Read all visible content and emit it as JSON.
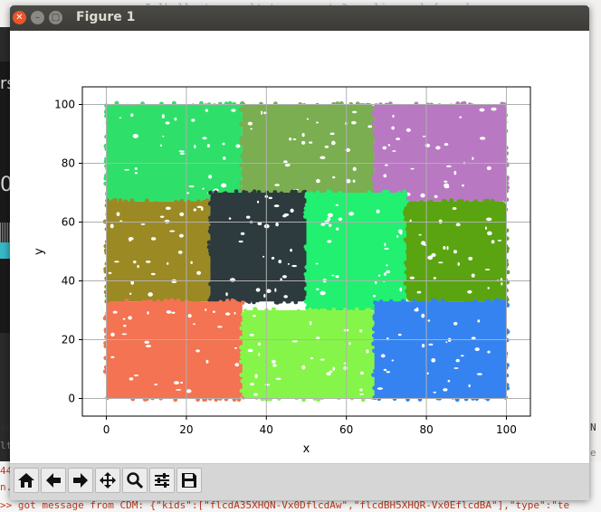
{
  "window": {
    "title": "Figure 1"
  },
  "background": {
    "top_text": "Ӏ   lbulluət  ‚ssssltut  u‚pccgat‚Ә‚xeulicsx  elxfcewel sesxse",
    "left_fragments": [
      "rs",
      "0"
    ],
    "right_fragments": [
      "N",
      "e"
    ],
    "bottom_left_fragments": [
      "sp",
      "lt",
      "44",
      "n."
    ],
    "terminal_prompt": ">>",
    "terminal_line": "got message from CDM: {\"kids\":[\"flcdA35XHQN-Vx0DflcdAw\",\"flcdBH5XHQR-Vx0EflcdBA\"],\"type\":\"te"
  },
  "toolbar": {
    "buttons": [
      {
        "name": "home-button",
        "icon": "home-icon"
      },
      {
        "name": "back-button",
        "icon": "arrow-left-icon"
      },
      {
        "name": "forward-button",
        "icon": "arrow-right-icon"
      },
      {
        "name": "pan-button",
        "icon": "move-icon"
      },
      {
        "name": "zoom-button",
        "icon": "magnifier-icon"
      },
      {
        "name": "subplots-button",
        "icon": "sliders-icon"
      },
      {
        "name": "save-button",
        "icon": "floppy-icon"
      }
    ]
  },
  "chart_data": {
    "type": "scatter",
    "title": "",
    "xlabel": "x",
    "ylabel": "y",
    "xlim": [
      -6,
      106
    ],
    "ylim": [
      -6,
      106
    ],
    "xticks": [
      0,
      20,
      40,
      60,
      80,
      100
    ],
    "yticks": [
      0,
      20,
      40,
      60,
      80,
      100
    ],
    "grid": true,
    "series": [
      {
        "color": "#2ee06a",
        "x_range": [
          0,
          34
        ],
        "y_range": [
          67,
          100
        ]
      },
      {
        "color": "#7aae50",
        "x_range": [
          34,
          67
        ],
        "y_range": [
          67,
          100
        ]
      },
      {
        "color": "#b978c2",
        "x_range": [
          67,
          100
        ],
        "y_range": [
          67,
          100
        ]
      },
      {
        "color": "#9b8a24",
        "x_range": [
          0,
          26
        ],
        "y_range": [
          33,
          67
        ]
      },
      {
        "color": "#2d3a3e",
        "x_range": [
          26,
          50
        ],
        "y_range": [
          33,
          70
        ]
      },
      {
        "color": "#21f070",
        "x_range": [
          50,
          75
        ],
        "y_range": [
          30,
          70
        ]
      },
      {
        "color": "#5aa411",
        "x_range": [
          75,
          100
        ],
        "y_range": [
          33,
          67
        ]
      },
      {
        "color": "#f37352",
        "x_range": [
          0,
          34
        ],
        "y_range": [
          0,
          33
        ]
      },
      {
        "color": "#86f54a",
        "x_range": [
          34,
          67
        ],
        "y_range": [
          0,
          30
        ]
      },
      {
        "color": "#3583f0",
        "x_range": [
          67,
          100
        ],
        "y_range": [
          0,
          33
        ]
      }
    ]
  }
}
